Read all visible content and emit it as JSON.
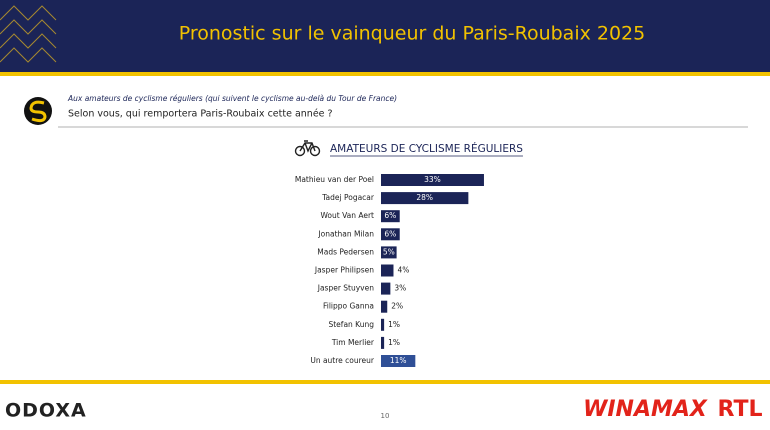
{
  "header": {
    "title": "Pronostic sur le vainqueur du Paris-Roubaix 2025"
  },
  "question": {
    "context": "Aux amateurs de cyclisme réguliers (qui suivent le cyclisme au-delà du Tour de France)",
    "text": "Selon vous, qui remportera Paris-Roubaix cette année ?"
  },
  "chart_data": {
    "type": "bar",
    "orientation": "horizontal",
    "title": "AMATEURS DE CYCLISME RÉGULIERS",
    "categories": [
      "Mathieu van der Poel",
      "Tadej Pogacar",
      "Wout Van Aert",
      "Jonathan Milan",
      "Mads Pedersen",
      "Jasper Philipsen",
      "Jasper Stuyven",
      "Filippo Ganna",
      "Stefan Kung",
      "Tim Merlier",
      "Un autre coureur"
    ],
    "values": [
      33,
      28,
      6,
      6,
      5,
      4,
      3,
      2,
      1,
      1,
      11
    ],
    "value_labels": [
      "33%",
      "28%",
      "6%",
      "6%",
      "5%",
      "4%",
      "3%",
      "2%",
      "1%",
      "1%",
      "11%"
    ],
    "colors": [
      "#1b2457",
      "#1b2457",
      "#1b2457",
      "#1b2457",
      "#1b2457",
      "#1b2457",
      "#1b2457",
      "#1b2457",
      "#1b2457",
      "#1b2457",
      "#2f4f96"
    ]
  },
  "footer": {
    "brand": "ODOXA",
    "page": "10",
    "partner1": "WINAMAX",
    "partner2": "RTL"
  }
}
